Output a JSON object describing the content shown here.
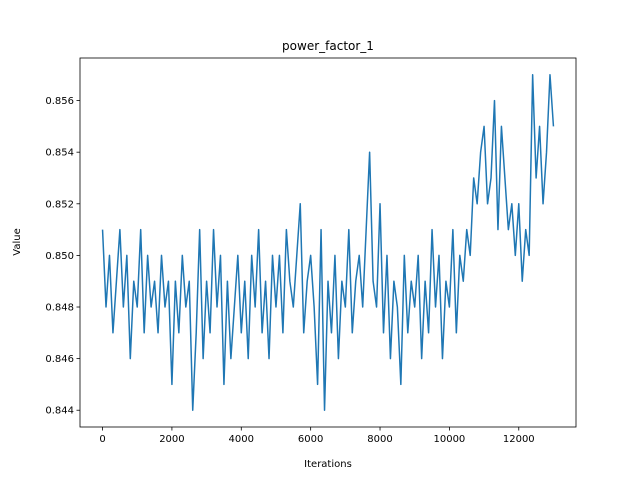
{
  "chart_data": {
    "type": "line",
    "title": "power_factor_1",
    "xlabel": "Iterations",
    "ylabel": "Value",
    "color": "#1f77b4",
    "xlim": [
      -650,
      13650
    ],
    "ylim": [
      0.84335,
      0.85765
    ],
    "xticks": [
      0,
      2000,
      4000,
      6000,
      8000,
      10000,
      12000
    ],
    "yticks": [
      0.844,
      0.846,
      0.848,
      {
        "value": 0.85,
        "label": "0.850"
      },
      0.852,
      0.854,
      0.856
    ],
    "x": [
      0,
      100,
      200,
      300,
      400,
      500,
      600,
      700,
      800,
      900,
      1000,
      1100,
      1200,
      1300,
      1400,
      1500,
      1600,
      1700,
      1800,
      1900,
      2000,
      2100,
      2200,
      2300,
      2400,
      2500,
      2600,
      2700,
      2800,
      2900,
      3000,
      3100,
      3200,
      3300,
      3400,
      3500,
      3600,
      3700,
      3800,
      3900,
      4000,
      4100,
      4200,
      4300,
      4400,
      4500,
      4600,
      4700,
      4800,
      4900,
      5000,
      5100,
      5200,
      5300,
      5400,
      5500,
      5600,
      5700,
      5800,
      5900,
      6000,
      6100,
      6200,
      6300,
      6400,
      6500,
      6600,
      6700,
      6800,
      6900,
      7000,
      7100,
      7200,
      7300,
      7400,
      7500,
      7600,
      7700,
      7800,
      7900,
      8000,
      8100,
      8200,
      8300,
      8400,
      8500,
      8600,
      8700,
      8800,
      8900,
      9000,
      9100,
      9200,
      9300,
      9400,
      9500,
      9600,
      9700,
      9800,
      9900,
      10000,
      10100,
      10200,
      10300,
      10400,
      10500,
      10600,
      10700,
      10800,
      10900,
      11000,
      11100,
      11200,
      11300,
      11400,
      11500,
      11600,
      11700,
      11800,
      11900,
      12000,
      12100,
      12200,
      12300,
      12400,
      12500,
      12600,
      12700,
      12800,
      12900,
      13000
    ],
    "values": [
      0.851,
      0.848,
      0.85,
      0.847,
      0.849,
      0.851,
      0.848,
      0.85,
      0.846,
      0.849,
      0.848,
      0.851,
      0.847,
      0.85,
      0.848,
      0.849,
      0.847,
      0.85,
      0.848,
      0.849,
      0.845,
      0.849,
      0.847,
      0.85,
      0.848,
      0.849,
      0.844,
      0.847,
      0.851,
      0.846,
      0.849,
      0.847,
      0.851,
      0.848,
      0.85,
      0.845,
      0.849,
      0.846,
      0.848,
      0.85,
      0.847,
      0.849,
      0.846,
      0.85,
      0.848,
      0.851,
      0.847,
      0.849,
      0.846,
      0.85,
      0.848,
      0.85,
      0.847,
      0.851,
      0.849,
      0.848,
      0.85,
      0.852,
      0.847,
      0.849,
      0.85,
      0.848,
      0.845,
      0.851,
      0.844,
      0.849,
      0.847,
      0.85,
      0.846,
      0.849,
      0.848,
      0.851,
      0.847,
      0.849,
      0.85,
      0.848,
      0.851,
      0.854,
      0.849,
      0.848,
      0.852,
      0.847,
      0.85,
      0.846,
      0.849,
      0.848,
      0.845,
      0.85,
      0.847,
      0.849,
      0.848,
      0.85,
      0.846,
      0.849,
      0.847,
      0.851,
      0.848,
      0.85,
      0.846,
      0.849,
      0.848,
      0.851,
      0.847,
      0.85,
      0.849,
      0.851,
      0.85,
      0.853,
      0.852,
      0.854,
      0.855,
      0.852,
      0.853,
      0.856,
      0.851,
      0.855,
      0.853,
      0.851,
      0.852,
      0.85,
      0.852,
      0.849,
      0.851,
      0.85,
      0.857,
      0.853,
      0.855,
      0.852,
      0.854,
      0.857,
      0.855
    ]
  }
}
